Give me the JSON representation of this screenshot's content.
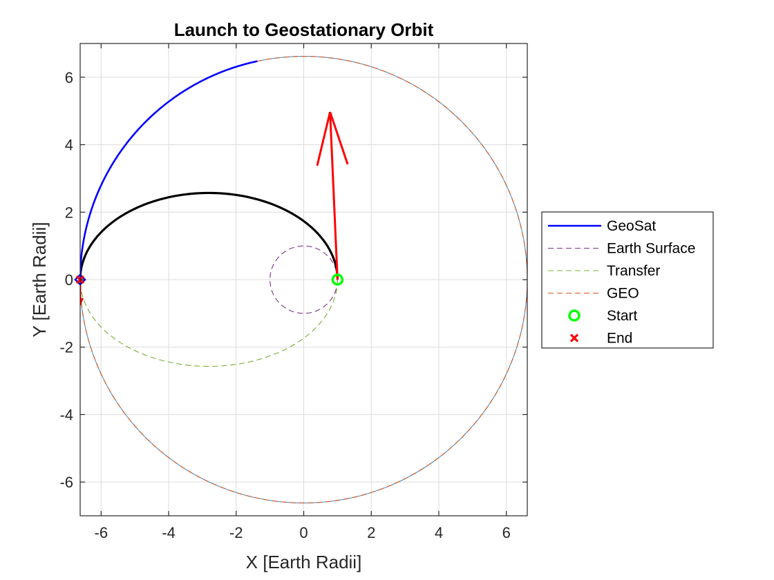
{
  "chart_data": {
    "type": "line",
    "title": "Launch to Geostationary Orbit",
    "xlabel": "X [Earth Radii]",
    "ylabel": "Y [Earth Radii]",
    "xlim": [
      -6.62,
      6.62
    ],
    "ylim": [
      -7,
      7
    ],
    "xticks": [
      -6,
      -4,
      -2,
      0,
      2,
      4,
      6
    ],
    "yticks": [
      -6,
      -4,
      -2,
      0,
      2,
      4,
      6
    ],
    "grid": true,
    "legend_position": "outside-right",
    "series": [
      {
        "name": "GeoSat",
        "color": "#0000ff",
        "style": "solid",
        "kind": "arc",
        "center": [
          0,
          0
        ],
        "radius": 6.62,
        "theta_deg": [
          102,
          180
        ]
      },
      {
        "name": "Earth Surface",
        "color": "#7e2f8e",
        "style": "dashed",
        "kind": "circle",
        "center": [
          0,
          0
        ],
        "radius": 1.0
      },
      {
        "name": "Transfer",
        "color": "#77ac30",
        "style": "dashed",
        "kind": "ellipse",
        "center": [
          -2.81,
          0
        ],
        "rx": 3.81,
        "ry": 2.57
      },
      {
        "name": "GEO",
        "color": "#d95319",
        "style": "dashed",
        "kind": "circle",
        "center": [
          0,
          0
        ],
        "radius": 6.62
      },
      {
        "name": "Start",
        "color": "#00ff00",
        "marker": "circle",
        "x": 1.0,
        "y": 0.0
      },
      {
        "name": "End",
        "color": "#ff0000",
        "marker": "x",
        "x": -6.62,
        "y": 0.0
      }
    ],
    "transfer_path": {
      "color": "#000000",
      "style": "solid",
      "center": [
        -2.81,
        0
      ],
      "rx": 3.81,
      "ry": 2.57,
      "theta_deg": [
        0,
        180
      ]
    },
    "velocity_arrow": {
      "color": "#ff0000",
      "from": [
        1.0,
        0.0
      ],
      "to": [
        0.78,
        4.97
      ]
    },
    "end_arrow": {
      "color": "#ff0000",
      "from": [
        -6.62,
        0.0
      ],
      "to": [
        -6.62,
        -0.75
      ]
    },
    "satellite_marker": {
      "color": "#0000ff",
      "shape": "diamond",
      "x": -6.62,
      "y": 0.0
    }
  }
}
